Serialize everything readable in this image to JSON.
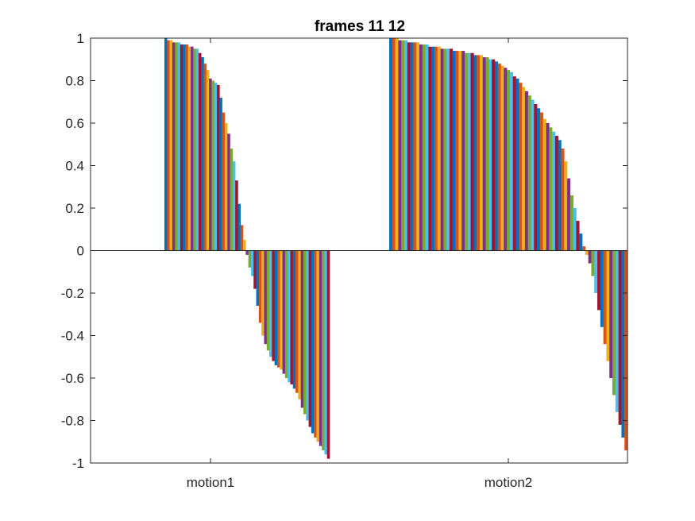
{
  "chart_data": {
    "type": "bar",
    "title": "frames 11 12",
    "xlabel": "",
    "ylabel": "",
    "categories": [
      "motion1",
      "motion2"
    ],
    "ylim": [
      -1,
      1
    ],
    "yticks": [
      -1,
      -0.8,
      -0.6,
      -0.4,
      -0.2,
      0,
      0.2,
      0.4,
      0.6,
      0.8,
      1
    ],
    "ytick_labels": [
      "-1",
      "-0.8",
      "-0.6",
      "-0.4",
      "-0.2",
      "0",
      "0.2",
      "0.4",
      "0.6",
      "0.8",
      "1"
    ],
    "grid": false,
    "legend": "none",
    "series_colors": [
      "#0072BD",
      "#D95319",
      "#EDB120",
      "#7E2F8E",
      "#77AC30",
      "#4DBEEE",
      "#A2142F"
    ],
    "groups": [
      {
        "category": "motion1",
        "values": [
          1.0,
          0.99,
          0.99,
          0.98,
          0.98,
          0.98,
          0.97,
          0.97,
          0.97,
          0.96,
          0.96,
          0.95,
          0.95,
          0.93,
          0.91,
          0.88,
          0.85,
          0.81,
          0.8,
          0.79,
          0.78,
          0.72,
          0.65,
          0.6,
          0.55,
          0.48,
          0.42,
          0.33,
          0.22,
          0.12,
          0.05,
          -0.02,
          -0.08,
          -0.12,
          -0.18,
          -0.26,
          -0.34,
          -0.4,
          -0.44,
          -0.47,
          -0.5,
          -0.52,
          -0.54,
          -0.55,
          -0.56,
          -0.58,
          -0.6,
          -0.62,
          -0.63,
          -0.65,
          -0.67,
          -0.7,
          -0.74,
          -0.77,
          -0.8,
          -0.83,
          -0.86,
          -0.88,
          -0.9,
          -0.92,
          -0.94,
          -0.96,
          -0.98
        ]
      },
      {
        "category": "motion2",
        "values": [
          1.0,
          1.0,
          1.0,
          0.99,
          0.99,
          0.99,
          0.98,
          0.98,
          0.98,
          0.98,
          0.97,
          0.97,
          0.97,
          0.96,
          0.96,
          0.96,
          0.96,
          0.95,
          0.95,
          0.95,
          0.95,
          0.94,
          0.94,
          0.94,
          0.94,
          0.93,
          0.93,
          0.93,
          0.92,
          0.92,
          0.92,
          0.91,
          0.91,
          0.9,
          0.9,
          0.89,
          0.88,
          0.87,
          0.86,
          0.85,
          0.84,
          0.82,
          0.81,
          0.79,
          0.77,
          0.75,
          0.73,
          0.71,
          0.69,
          0.67,
          0.65,
          0.62,
          0.6,
          0.58,
          0.56,
          0.54,
          0.52,
          0.48,
          0.42,
          0.34,
          0.26,
          0.2,
          0.14,
          0.08,
          0.02,
          -0.02,
          -0.06,
          -0.12,
          -0.2,
          -0.28,
          -0.36,
          -0.44,
          -0.52,
          -0.6,
          -0.68,
          -0.76,
          -0.82,
          -0.88,
          -0.94
        ]
      }
    ]
  }
}
